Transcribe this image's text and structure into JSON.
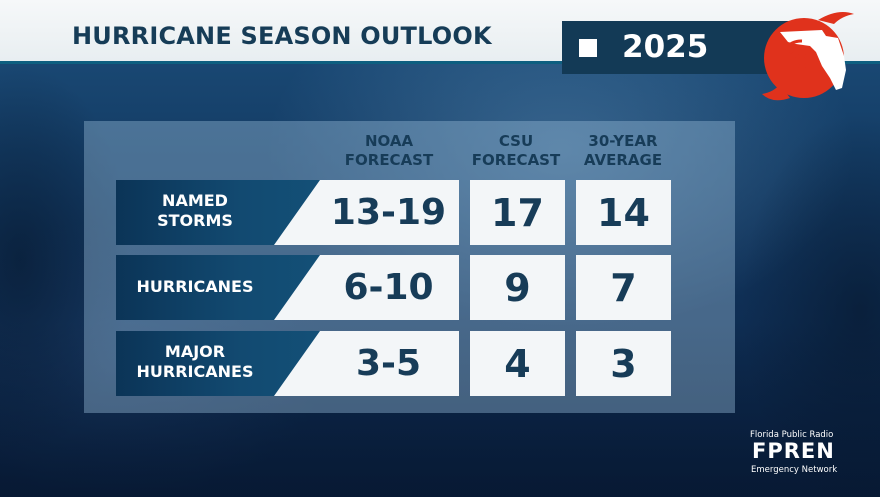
{
  "header": {
    "title": "HURRICANE SEASON OUTLOOK",
    "year": "2025"
  },
  "table": {
    "columns": [
      {
        "line1": "NOAA",
        "line2": "FORECAST"
      },
      {
        "line1": "CSU",
        "line2": "FORECAST"
      },
      {
        "line1": "30-YEAR",
        "line2": "AVERAGE"
      }
    ],
    "rows": [
      {
        "label_line1": "NAMED",
        "label_line2": "STORMS",
        "noaa": "13-19",
        "csu": "17",
        "avg": "14"
      },
      {
        "label_line1": "HURRICANES",
        "label_line2": "",
        "noaa": "6-10",
        "csu": "9",
        "avg": "7"
      },
      {
        "label_line1": "MAJOR",
        "label_line2": "HURRICANES",
        "noaa": "3-5",
        "csu": "4",
        "avg": "3"
      }
    ]
  },
  "footer": {
    "network_top": "Florida Public Radio",
    "network_name": "FPREN",
    "network_bottom": "Emergency Network"
  },
  "colors": {
    "navy": "#133a56",
    "accent_red": "#e0321c"
  },
  "icons": [
    "florida-hurricane-logo-icon",
    "year-square-icon"
  ]
}
